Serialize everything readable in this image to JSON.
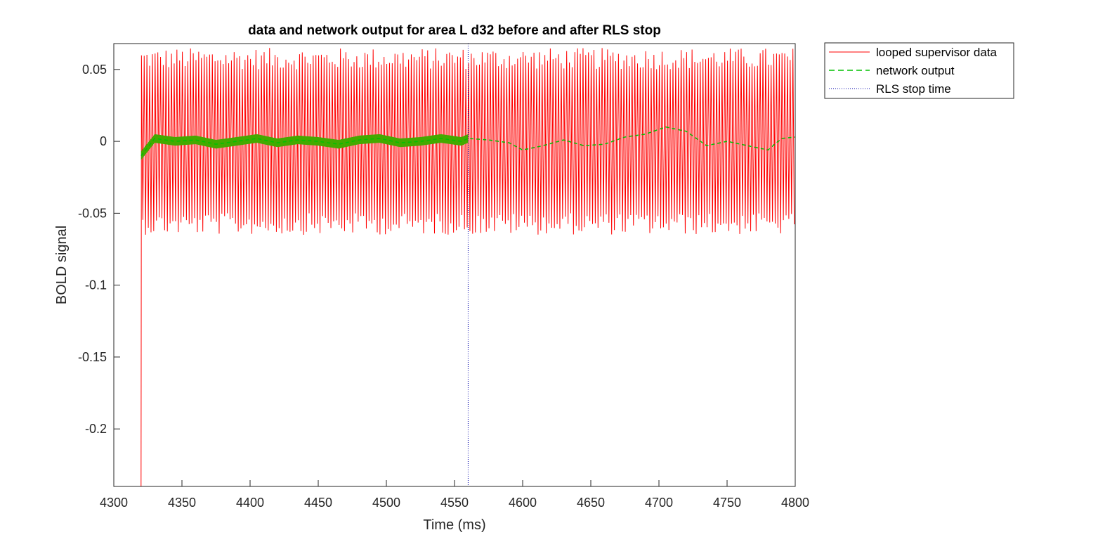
{
  "chart_data": {
    "type": "line",
    "title": "data and network output for area L d32 before and after RLS stop",
    "xlabel": "Time (ms)",
    "ylabel": "BOLD signal",
    "xlim": [
      4300,
      4800
    ],
    "ylim": [
      -0.24,
      0.068
    ],
    "xticks": [
      4300,
      4350,
      4400,
      4450,
      4500,
      4550,
      4600,
      4650,
      4700,
      4750,
      4800
    ],
    "xtick_labels": [
      "4300",
      "4350",
      "4400",
      "4450",
      "4500",
      "4550",
      "4600",
      "4650",
      "4700",
      "4750",
      "4800"
    ],
    "yticks": [
      0.05,
      0,
      -0.05,
      -0.1,
      -0.15,
      -0.2
    ],
    "ytick_labels": [
      "0.05",
      "0",
      "-0.05",
      "-0.1",
      "-0.15",
      "-0.2"
    ],
    "grid": false,
    "legend_position": "outside-top-right",
    "series": [
      {
        "name": "looped supervisor data",
        "style": "solid",
        "color": "#ff0000",
        "x_start": 4320,
        "x_end": 4800,
        "oscillation_period": 2.0,
        "amplitude_range": [
          0.05,
          0.065
        ],
        "initial_value": -0.24
      },
      {
        "name": "network output",
        "style": "dashed",
        "color": "#00c000",
        "x_start": 4320,
        "x_end": 4800,
        "fill_color": "#44aa00",
        "x": [
          4320,
          4330,
          4345,
          4360,
          4375,
          4390,
          4405,
          4420,
          4435,
          4450,
          4465,
          4480,
          4495,
          4510,
          4525,
          4540,
          4555,
          4560,
          4575,
          4590,
          4600,
          4615,
          4630,
          4645,
          4660,
          4675,
          4690,
          4705,
          4720,
          4735,
          4750,
          4765,
          4780,
          4790,
          4800
        ],
        "y": [
          -0.01,
          0.002,
          0.0,
          0.001,
          -0.002,
          0.0,
          0.002,
          -0.001,
          0.001,
          0.0,
          -0.002,
          0.001,
          0.002,
          -0.001,
          0.0,
          0.002,
          0.0,
          0.002,
          0.001,
          -0.001,
          -0.006,
          -0.003,
          0.001,
          -0.003,
          -0.002,
          0.003,
          0.005,
          0.01,
          0.007,
          -0.003,
          0.0,
          -0.003,
          -0.006,
          0.002,
          0.003
        ]
      },
      {
        "name": "RLS stop time",
        "style": "dotted",
        "color": "#0000aa",
        "x": 4560
      }
    ]
  }
}
